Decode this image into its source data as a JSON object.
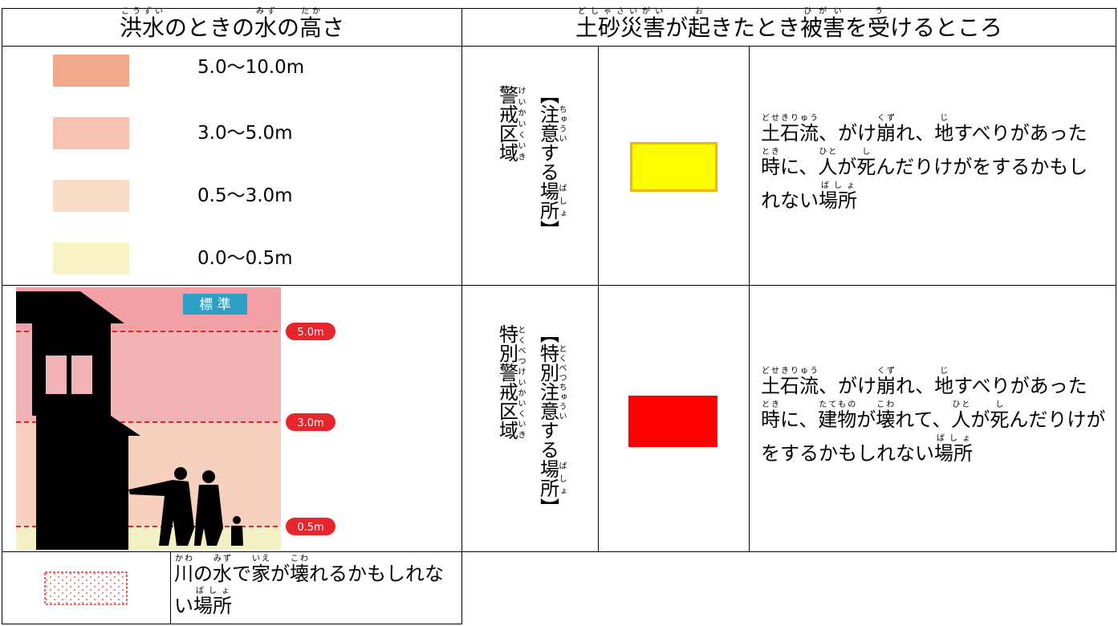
{
  "header": {
    "left": [
      {
        "t": "洪水",
        "r": "こうずい"
      },
      {
        "t": "のとき"
      },
      {
        "t": "の"
      },
      {
        "t": "水",
        "r": "みず"
      },
      {
        "t": "の"
      },
      {
        "t": "高",
        "r": "たか"
      },
      {
        "t": "さ"
      }
    ],
    "right": [
      {
        "t": "土砂災害",
        "r": "どしゃさいがい"
      },
      {
        "t": "が"
      },
      {
        "t": "起",
        "r": "お"
      },
      {
        "t": "きたとき"
      },
      {
        "t": "被害",
        "r": "ひがい"
      },
      {
        "t": "を"
      },
      {
        "t": "受",
        "r": "う"
      },
      {
        "t": "けるところ"
      }
    ]
  },
  "flood_legend": [
    {
      "label": "5.0～10.0m",
      "color": "#f2a98a"
    },
    {
      "label": "3.0～5.0m",
      "color": "#f6c4ae"
    },
    {
      "label": "0.5～3.0m",
      "color": "#f9dcc8"
    },
    {
      "label": "0.0～0.5m",
      "color": "#f8f3c4"
    }
  ],
  "illustration": {
    "badge": "標 準",
    "levels": [
      "5.0m",
      "3.0m",
      "0.5m"
    ]
  },
  "sediment_rows": [
    {
      "zone_label": [
        {
          "t": "【"
        },
        {
          "t": "注意",
          "r": "ちゅうい"
        },
        {
          "t": "する"
        },
        {
          "t": "場所",
          "r": "ばしょ"
        },
        {
          "t": "】"
        }
      ],
      "zone_name": [
        {
          "t": "警戒区域",
          "r": "けいかいくいき"
        }
      ],
      "color": "#ffff00",
      "border": "#f5b400",
      "description": [
        {
          "t": "土石流",
          "r": "どせきりゅう"
        },
        {
          "t": "、がけ"
        },
        {
          "t": "崩",
          "r": "くず"
        },
        {
          "t": "れ、"
        },
        {
          "t": "地",
          "r": "じ"
        },
        {
          "t": "すべりがあった"
        },
        {
          "t": "時",
          "r": "とき"
        },
        {
          "t": "に、"
        },
        {
          "t": "人",
          "r": "ひと"
        },
        {
          "t": "が"
        },
        {
          "t": "死",
          "r": "し"
        },
        {
          "t": "んだりけがをするかもしれない"
        },
        {
          "t": "場所",
          "r": "ばしょ"
        }
      ]
    },
    {
      "zone_label": [
        {
          "t": "【"
        },
        {
          "t": "特別",
          "r": "とくべつ"
        },
        {
          "t": "注意",
          "r": "ちゅうい"
        },
        {
          "t": "する"
        },
        {
          "t": "場所",
          "r": "ばしょ"
        },
        {
          "t": "】"
        }
      ],
      "zone_name": [
        {
          "t": "特別警戒区域",
          "r": "とくべつけいかいくいき"
        }
      ],
      "color": "#ff0000",
      "border": "#ff0000",
      "description": [
        {
          "t": "土石流",
          "r": "どせきりゅう"
        },
        {
          "t": "、がけ"
        },
        {
          "t": "崩",
          "r": "くず"
        },
        {
          "t": "れ、"
        },
        {
          "t": "地",
          "r": "じ"
        },
        {
          "t": "すべりがあった"
        },
        {
          "t": "時",
          "r": "とき"
        },
        {
          "t": "に、"
        },
        {
          "t": "建物",
          "r": "たてもの"
        },
        {
          "t": "が"
        },
        {
          "t": "壊",
          "r": "こわ"
        },
        {
          "t": "れて、"
        },
        {
          "t": "人",
          "r": "ひと"
        },
        {
          "t": "が"
        },
        {
          "t": "死",
          "r": "し"
        },
        {
          "t": "んだりけがをするかもしれない"
        },
        {
          "t": "場所",
          "r": "ばしょ"
        }
      ]
    }
  ],
  "river_row": {
    "description": [
      {
        "t": "川",
        "r": "かわ"
      },
      {
        "t": "の"
      },
      {
        "t": "水",
        "r": "みず"
      },
      {
        "t": "で"
      },
      {
        "t": "家",
        "r": "いえ"
      },
      {
        "t": "が"
      },
      {
        "t": "壊",
        "r": "こわ"
      },
      {
        "t": "れるかもしれない"
      },
      {
        "t": "場所",
        "r": "ばしょ"
      }
    ]
  }
}
